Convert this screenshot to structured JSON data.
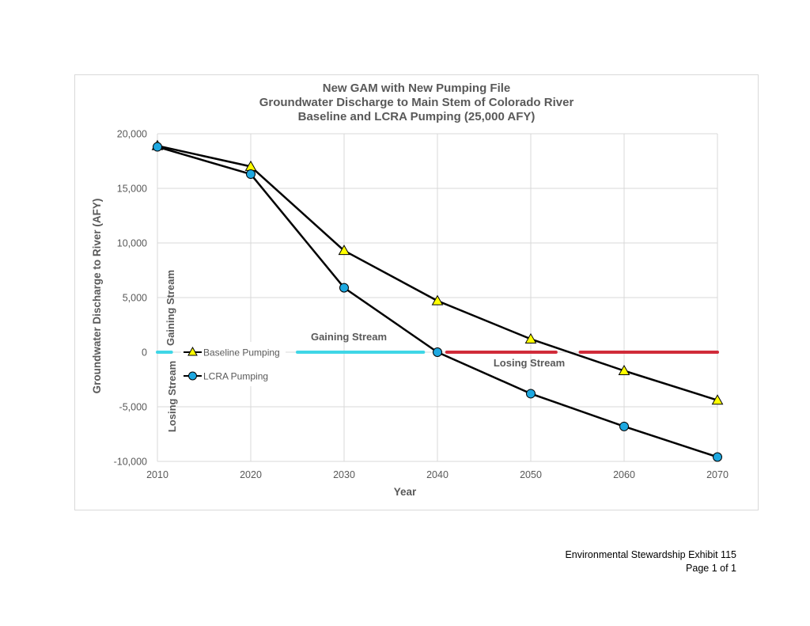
{
  "footer": {
    "line1": "Environmental Stewardship Exhibit 115",
    "line2": "Page 1 of 1"
  },
  "chart_data": {
    "type": "line",
    "title": [
      "New GAM with New Pumping File",
      "Groundwater Discharge to Main Stem of Colorado River",
      "Baseline and LCRA Pumping (25,000 AFY)"
    ],
    "xlabel": "Year",
    "ylabel": "Groundwater Discharge to River (AFY)",
    "xlim": [
      2010,
      2070
    ],
    "ylim": [
      -10000,
      20000
    ],
    "x_ticks": [
      2010,
      2020,
      2030,
      2040,
      2050,
      2060,
      2070
    ],
    "y_ticks": [
      20000,
      15000,
      10000,
      5000,
      0,
      -5000,
      -10000
    ],
    "x_tick_labels": [
      "2010",
      "2020",
      "2030",
      "2040",
      "2050",
      "2060",
      "2070"
    ],
    "y_tick_labels": [
      "20,000",
      "15,000",
      "10,000",
      "5,000",
      "0",
      "-5,000",
      "-10,000"
    ],
    "grid": "vertical and horizontal",
    "x": [
      2010,
      2020,
      2030,
      2040,
      2050,
      2060,
      2070
    ],
    "series": [
      {
        "name": "Baseline Pumping",
        "marker": "triangle",
        "marker_color": "#ffff00",
        "line_color": "#000000",
        "values": [
          18900,
          17000,
          9300,
          4700,
          1200,
          -1700,
          -4400
        ]
      },
      {
        "name": "LCRA Pumping",
        "marker": "circle",
        "marker_color": "#1ea8e0",
        "line_color": "#000000",
        "values": [
          18800,
          16300,
          5900,
          0,
          -3800,
          -6800,
          -9600
        ]
      }
    ],
    "legend_placement": "left, near zero line",
    "stream_segments": [
      {
        "status": "gaining",
        "color": "#3fd6e6",
        "x_start": 2010,
        "x_end": 2011.5
      },
      {
        "status": "gaining",
        "color": "#3fd6e6",
        "x_start": 2025,
        "x_end": 2038.5
      },
      {
        "status": "losing",
        "color": "#d02b39",
        "x_start": 2041,
        "x_end": 2052.7
      },
      {
        "status": "losing",
        "color": "#d02b39",
        "x_start": 2055.3,
        "x_end": 2070
      }
    ],
    "annotations": {
      "gaining_vertical": "Gaining Stream",
      "losing_vertical": "Losing Stream",
      "gaining_horizontal": "Gaining Stream",
      "losing_horizontal": "Losing Stream"
    }
  }
}
